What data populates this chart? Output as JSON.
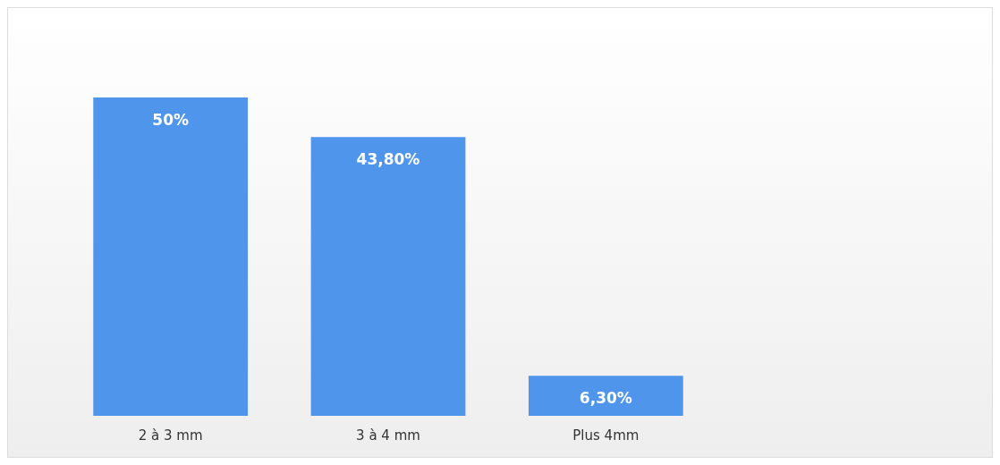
{
  "chart_data": {
    "type": "bar",
    "categories": [
      "2 à 3 mm",
      "3 à 4 mm",
      "Plus 4mm"
    ],
    "values": [
      50,
      43.8,
      6.3
    ],
    "value_labels": [
      "50%",
      "43,80%",
      "6,30%"
    ],
    "color": "#4f95ec"
  }
}
